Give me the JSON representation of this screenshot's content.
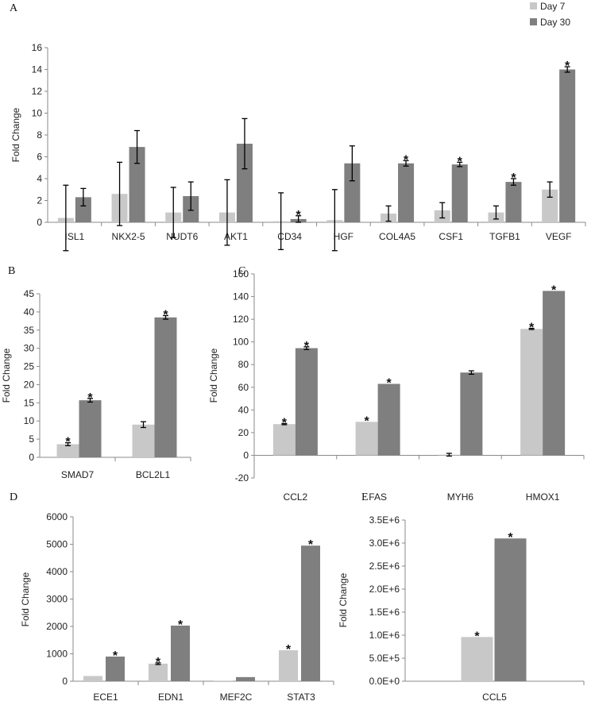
{
  "colors": {
    "day7": "#c8c8c8",
    "day30": "#7f7f7f",
    "axis": "#8a8a8a",
    "error": "#000000"
  },
  "legend": [
    {
      "label": "Day 7",
      "color": "#c8c8c8"
    },
    {
      "label": "Day 30",
      "color": "#7f7f7f"
    }
  ],
  "chart_data": [
    {
      "panel": "A",
      "type": "bar",
      "ylabel": "Fold Change",
      "ylim": [
        0,
        16
      ],
      "yticks": [
        "0",
        "2",
        "4",
        "6",
        "8",
        "10",
        "12",
        "14",
        "16"
      ],
      "categories": [
        "ISL1",
        "NKX2-5",
        "NUDT6",
        "AKT1",
        "CD34",
        "HGF",
        "COL4A5",
        "CSF1",
        "TGFB1",
        "VEGF"
      ],
      "series": [
        {
          "name": "Day 7",
          "values": [
            0.4,
            2.6,
            0.9,
            0.9,
            0.1,
            0.2,
            0.8,
            1.1,
            0.9,
            3.0
          ],
          "error": [
            3.0,
            2.9,
            2.3,
            3.0,
            2.6,
            2.8,
            0.7,
            0.7,
            0.6,
            0.7
          ],
          "sig": [
            false,
            false,
            false,
            false,
            false,
            false,
            false,
            false,
            false,
            false
          ]
        },
        {
          "name": "Day 30",
          "values": [
            2.3,
            6.9,
            2.4,
            7.2,
            0.3,
            5.4,
            5.4,
            5.3,
            3.7,
            14.0
          ],
          "error": [
            0.8,
            1.5,
            1.3,
            2.3,
            0.3,
            1.6,
            0.25,
            0.2,
            0.3,
            0.25
          ],
          "sig": [
            false,
            false,
            false,
            false,
            true,
            false,
            true,
            true,
            true,
            true
          ]
        }
      ]
    },
    {
      "panel": "B",
      "type": "bar",
      "ylabel": "Fold Change",
      "ylim": [
        0,
        45
      ],
      "yticks": [
        "0",
        "5",
        "10",
        "15",
        "20",
        "25",
        "30",
        "35",
        "40",
        "45"
      ],
      "categories": [
        "SMAD7",
        "BCL2L1"
      ],
      "series": [
        {
          "name": "Day 7",
          "values": [
            3.6,
            9.0
          ],
          "error": [
            0.4,
            0.8
          ],
          "sig": [
            true,
            false
          ]
        },
        {
          "name": "Day 30",
          "values": [
            15.7,
            38.5
          ],
          "error": [
            0.5,
            0.5
          ],
          "sig": [
            true,
            true
          ]
        }
      ]
    },
    {
      "panel": "C",
      "type": "bar",
      "ylabel": "Fold Change",
      "ylim": [
        -20,
        160
      ],
      "yticks": [
        "-20",
        "0",
        "20",
        "40",
        "60",
        "80",
        "100",
        "120",
        "140",
        "160"
      ],
      "categories": [
        "CCL2",
        "FAS",
        "MYH6",
        "HMOX1"
      ],
      "series": [
        {
          "name": "Day 7",
          "values": [
            27.5,
            29.5,
            0.5,
            111.5
          ],
          "error": [
            0.5,
            0,
            1.2,
            0.5
          ],
          "sig": [
            true,
            true,
            false,
            true
          ]
        },
        {
          "name": "Day 30",
          "values": [
            94.5,
            63,
            73,
            145
          ],
          "error": [
            1.2,
            0,
            1.5,
            0
          ],
          "sig": [
            true,
            true,
            false,
            true
          ]
        }
      ]
    },
    {
      "panel": "D",
      "type": "bar",
      "ylabel": "Fold Change",
      "ylim": [
        0,
        6000
      ],
      "yticks": [
        "0",
        "1000",
        "2000",
        "3000",
        "4000",
        "5000",
        "6000"
      ],
      "categories": [
        "ECE1",
        "EDN1",
        "MEF2C",
        "STAT3"
      ],
      "series": [
        {
          "name": "Day 7",
          "values": [
            190,
            640,
            20,
            1130
          ],
          "error": [
            0,
            30,
            0,
            0
          ],
          "sig": [
            false,
            true,
            false,
            true
          ]
        },
        {
          "name": "Day 30",
          "values": [
            900,
            2030,
            150,
            4950
          ],
          "error": [
            0,
            0,
            0,
            0
          ],
          "sig": [
            true,
            true,
            false,
            true
          ]
        }
      ]
    },
    {
      "panel": "E",
      "type": "bar",
      "ylabel": "Fold Change",
      "ylim": [
        0,
        3500000
      ],
      "yticks": [
        "0.0E+0",
        "5.0E+5",
        "1.0E+6",
        "1.5E+6",
        "2.0E+6",
        "2.5E+6",
        "3.0E+6",
        "3.5E+6"
      ],
      "categories": [
        "CCL5"
      ],
      "series": [
        {
          "name": "Day 7",
          "values": [
            960000
          ],
          "error": [
            0
          ],
          "sig": [
            true
          ]
        },
        {
          "name": "Day 30",
          "values": [
            3100000
          ],
          "error": [
            0
          ],
          "sig": [
            true
          ]
        }
      ]
    }
  ]
}
